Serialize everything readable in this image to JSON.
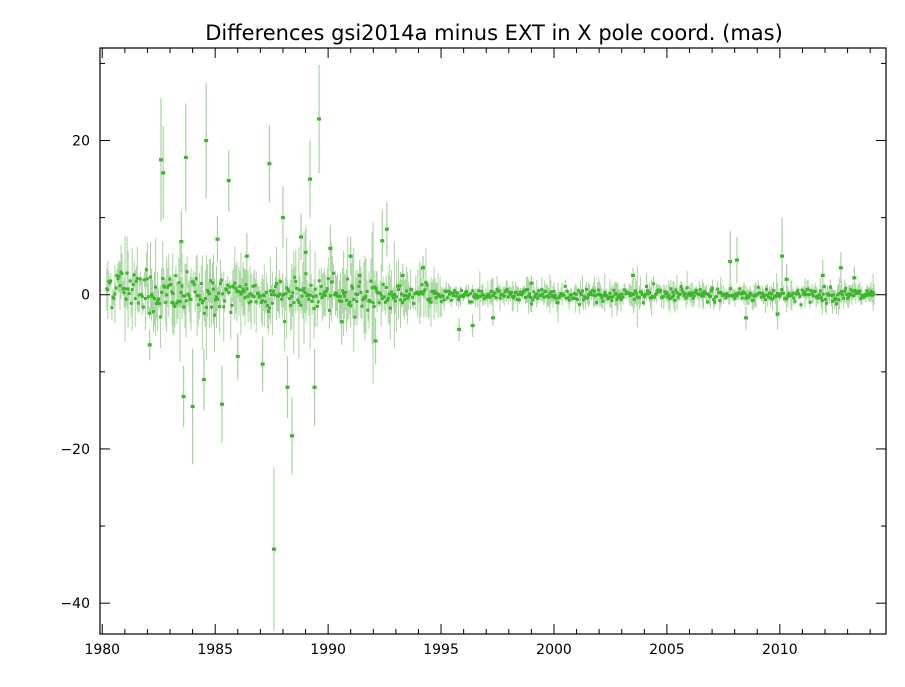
{
  "chart_data": {
    "type": "scatter",
    "title": "Differences gsi2014a minus EXT in X pole coord. (mas)",
    "xlabel": "",
    "ylabel": "",
    "xlim": [
      1979.9,
      2014.7
    ],
    "ylim": [
      -44,
      32
    ],
    "x_ticks": [
      1980,
      1985,
      1990,
      1995,
      2000,
      2005,
      2010
    ],
    "y_ticks": [
      20,
      0,
      -20,
      -40
    ],
    "y_tick_labels": [
      "20",
      "0",
      "−20",
      "−40"
    ],
    "grid": false,
    "legend": "none",
    "colors": {
      "points": "#3cb42c",
      "error_bars": "#a6d69e",
      "axes": "#000000"
    },
    "outliers": [
      {
        "x": 1982.1,
        "y": -6.5,
        "err": 2.0
      },
      {
        "x": 1982.6,
        "y": 17.5,
        "err": 8.0
      },
      {
        "x": 1982.7,
        "y": 15.8,
        "err": 6.0
      },
      {
        "x": 1983.1,
        "y": -1.0,
        "err": 3.0
      },
      {
        "x": 1983.5,
        "y": 6.9,
        "err": 4.0
      },
      {
        "x": 1983.6,
        "y": -13.2,
        "err": 4.0
      },
      {
        "x": 1983.7,
        "y": 17.8,
        "err": 7.0
      },
      {
        "x": 1984.0,
        "y": -14.5,
        "err": 7.5
      },
      {
        "x": 1984.5,
        "y": -11.0,
        "err": 4.0
      },
      {
        "x": 1984.6,
        "y": 20.0,
        "err": 7.5
      },
      {
        "x": 1985.1,
        "y": 7.2,
        "err": 3.0
      },
      {
        "x": 1985.3,
        "y": -14.2,
        "err": 5.0
      },
      {
        "x": 1985.6,
        "y": 14.8,
        "err": 4.0
      },
      {
        "x": 1986.0,
        "y": -8.0,
        "err": 3.0
      },
      {
        "x": 1986.4,
        "y": 5.0,
        "err": 3.0
      },
      {
        "x": 1987.1,
        "y": -9.0,
        "err": 3.5
      },
      {
        "x": 1987.4,
        "y": 17.0,
        "err": 5.0
      },
      {
        "x": 1987.6,
        "y": -33.0,
        "err": 10.5
      },
      {
        "x": 1988.0,
        "y": 10.0,
        "err": 4.0
      },
      {
        "x": 1988.2,
        "y": -12.0,
        "err": 4.0
      },
      {
        "x": 1988.4,
        "y": -18.3,
        "err": 5.0
      },
      {
        "x": 1988.8,
        "y": 7.5,
        "err": 3.0
      },
      {
        "x": 1989.0,
        "y": 5.5,
        "err": 3.0
      },
      {
        "x": 1989.2,
        "y": 15.0,
        "err": 5.0
      },
      {
        "x": 1989.4,
        "y": -12.0,
        "err": 5.0
      },
      {
        "x": 1989.6,
        "y": 22.8,
        "err": 7.0
      },
      {
        "x": 1990.1,
        "y": 6.0,
        "err": 3.0
      },
      {
        "x": 1990.6,
        "y": -3.5,
        "err": 3.0
      },
      {
        "x": 1991.0,
        "y": 5.0,
        "err": 2.5
      },
      {
        "x": 1991.4,
        "y": 2.5,
        "err": 2.0
      },
      {
        "x": 1992.1,
        "y": -6.0,
        "err": 3.0
      },
      {
        "x": 1992.4,
        "y": 7.0,
        "err": 4.0
      },
      {
        "x": 1992.6,
        "y": 8.5,
        "err": 3.5
      },
      {
        "x": 1993.3,
        "y": 2.5,
        "err": 1.5
      },
      {
        "x": 1994.2,
        "y": 3.5,
        "err": 1.5
      },
      {
        "x": 1995.8,
        "y": -4.5,
        "err": 1.5
      },
      {
        "x": 1996.4,
        "y": -4.0,
        "err": 1.5
      },
      {
        "x": 1997.3,
        "y": -3.0,
        "err": 1.0
      },
      {
        "x": 1999.0,
        "y": 1.5,
        "err": 1.0
      },
      {
        "x": 2003.5,
        "y": 2.5,
        "err": 1.0
      },
      {
        "x": 2007.8,
        "y": 4.3,
        "err": 4.0
      },
      {
        "x": 2008.1,
        "y": 4.5,
        "err": 3.0
      },
      {
        "x": 2008.5,
        "y": -3.0,
        "err": 1.5
      },
      {
        "x": 2009.9,
        "y": -2.5,
        "err": 2.0
      },
      {
        "x": 2010.1,
        "y": 5.0,
        "err": 5.0
      },
      {
        "x": 2010.3,
        "y": 2.0,
        "err": 2.0
      },
      {
        "x": 2011.9,
        "y": 2.5,
        "err": 2.0
      },
      {
        "x": 2012.7,
        "y": 3.5,
        "err": 2.0
      },
      {
        "x": 2013.3,
        "y": 2.2,
        "err": 1.5
      }
    ]
  }
}
